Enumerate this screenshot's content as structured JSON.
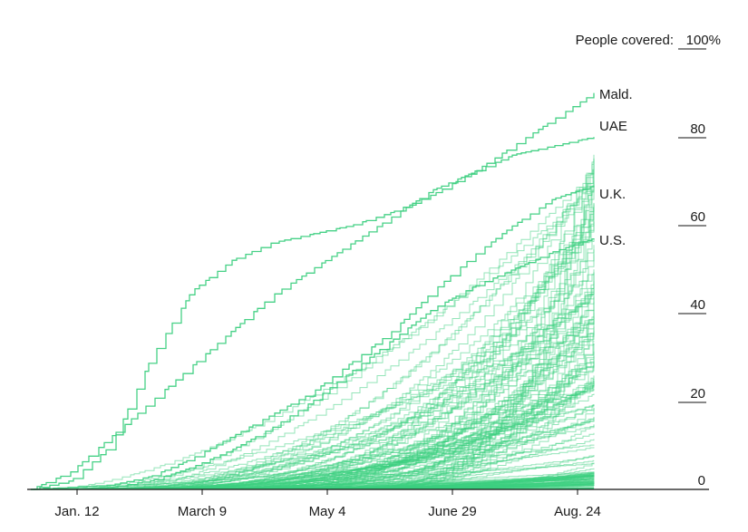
{
  "chart_data": {
    "type": "line",
    "title": "",
    "xlabel": "",
    "ylabel_prefix": "People covered:",
    "ylim": [
      0,
      100
    ],
    "y_ticks": [
      {
        "value": 0,
        "label": "0"
      },
      {
        "value": 20,
        "label": "20"
      },
      {
        "value": 40,
        "label": "40"
      },
      {
        "value": 60,
        "label": "60"
      },
      {
        "value": 80,
        "label": "80"
      },
      {
        "value": 100,
        "label": "100%"
      }
    ],
    "x_ticks": [
      "Jan. 12",
      "March 9",
      "May 4",
      "June 29",
      "Aug. 24"
    ],
    "grid": false,
    "line_color": "#3ccf7f",
    "labeled_series": [
      {
        "name": "Mald.",
        "values": [
          0,
          2,
          10,
          30,
          45,
          52,
          56,
          58,
          60,
          63,
          67,
          72,
          78,
          84,
          90
        ]
      },
      {
        "name": "UAE",
        "values": [
          0,
          4,
          12,
          20,
          28,
          36,
          44,
          50,
          56,
          62,
          68,
          72,
          76,
          78,
          80
        ]
      },
      {
        "name": "U.K.",
        "values": [
          0,
          0.5,
          1,
          3,
          7,
          12,
          17,
          22,
          29,
          36,
          45,
          53,
          60,
          66,
          69
        ]
      },
      {
        "name": "U.S.",
        "values": [
          0,
          0,
          0.5,
          2,
          5,
          9,
          14,
          20,
          27,
          34,
          41,
          46,
          50,
          54,
          57
        ]
      }
    ],
    "unlabeled_series_count": 160
  }
}
